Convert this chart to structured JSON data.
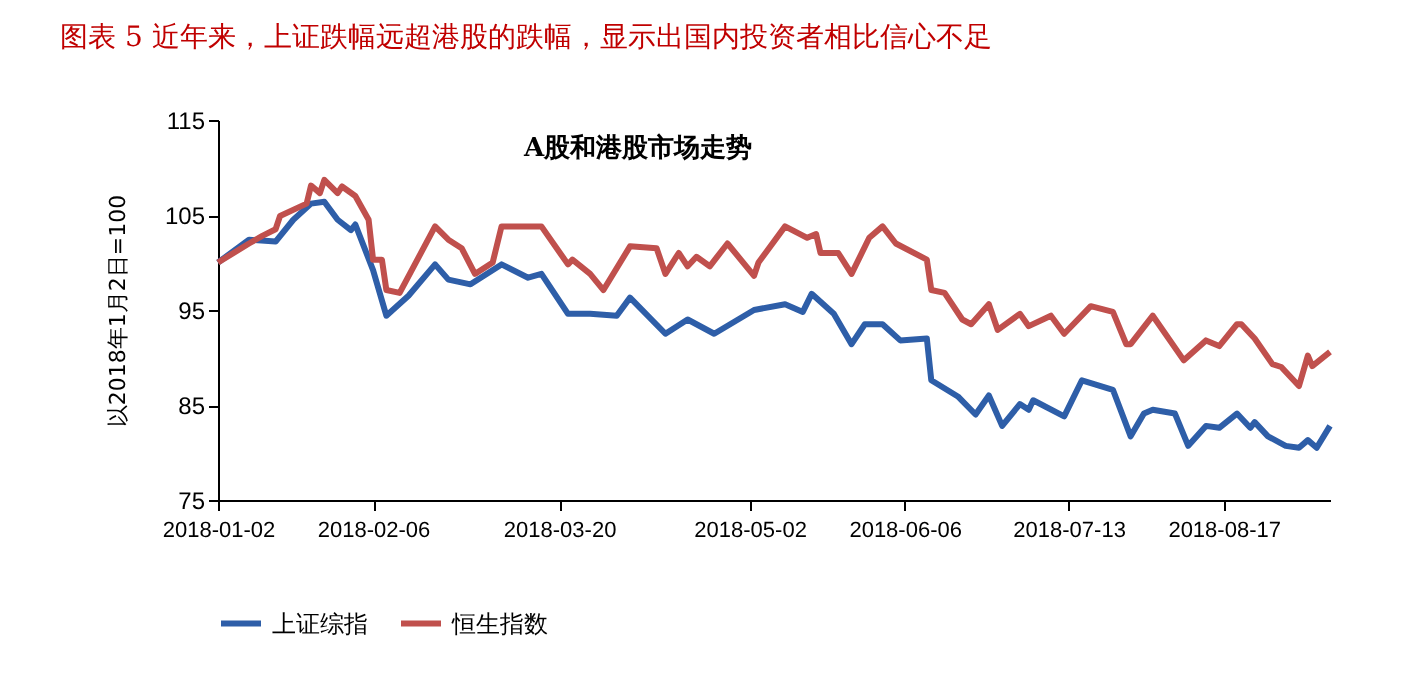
{
  "chart_data": {
    "type": "line",
    "title": "图表 5 近年来，上证跌幅远超港股的跌幅，显示出国内投资者相比信心不足",
    "subtitle": "A股和港股市场走势",
    "ylabel": "以2018年1月2日=100",
    "xlim": [
      "2018-01-02",
      "2018-09-10"
    ],
    "xticks": [
      "2018-01-02",
      "2018-02-06",
      "2018-03-20",
      "2018-05-02",
      "2018-06-06",
      "2018-07-13",
      "2018-08-17"
    ],
    "ylim": [
      75,
      115
    ],
    "yticks": [
      75,
      85,
      95,
      105,
      115
    ],
    "grid": false,
    "legend": "bottom",
    "marker": "none",
    "line_style": "solid",
    "series": [
      {
        "name": "上证综指",
        "color": "#2e5ea8",
        "x": [
          "2018-01-02",
          "2018-01-09",
          "2018-01-15",
          "2018-01-19",
          "2018-01-23",
          "2018-01-26",
          "2018-01-29",
          "2018-02-01",
          "2018-02-02",
          "2018-02-06",
          "2018-02-09",
          "2018-02-14",
          "2018-02-20",
          "2018-02-23",
          "2018-02-28",
          "2018-03-07",
          "2018-03-13",
          "2018-03-16",
          "2018-03-22",
          "2018-03-27",
          "2018-04-02",
          "2018-04-05",
          "2018-04-13",
          "2018-04-18",
          "2018-04-24",
          "2018-05-03",
          "2018-05-10",
          "2018-05-14",
          "2018-05-16",
          "2018-05-21",
          "2018-05-25",
          "2018-05-28",
          "2018-06-01",
          "2018-06-05",
          "2018-06-11",
          "2018-06-12",
          "2018-06-18",
          "2018-06-22",
          "2018-06-25",
          "2018-06-28",
          "2018-07-02",
          "2018-07-04",
          "2018-07-05",
          "2018-07-12",
          "2018-07-16",
          "2018-07-23",
          "2018-07-27",
          "2018-07-30",
          "2018-08-01",
          "2018-08-06",
          "2018-08-09",
          "2018-08-13",
          "2018-08-16",
          "2018-08-20",
          "2018-08-23",
          "2018-08-24",
          "2018-08-27",
          "2018-08-31",
          "2018-09-03",
          "2018-09-05",
          "2018-09-07",
          "2018-09-10"
        ],
        "values": [
          100,
          102.4,
          102.2,
          104.5,
          106.2,
          106.4,
          104.5,
          103.4,
          104,
          99.2,
          94.4,
          96.5,
          99.8,
          98.2,
          97.7,
          99.8,
          98.4,
          98.8,
          94.6,
          94.6,
          94.4,
          96.3,
          92.5,
          94,
          92.5,
          95,
          95.6,
          94.8,
          96.7,
          94.6,
          91.4,
          93.5,
          93.5,
          91.8,
          92,
          87.6,
          85.9,
          84,
          86,
          82.8,
          85.1,
          84.5,
          85.5,
          83.8,
          87.6,
          86.6,
          81.7,
          84.1,
          84.5,
          84.1,
          80.7,
          82.8,
          82.6,
          84.1,
          82.6,
          83.2,
          81.7,
          80.7,
          80.5,
          81.3,
          80.5,
          82.8
        ]
      },
      {
        "name": "恒生指数",
        "color": "#c0504d",
        "x": [
          "2018-01-02",
          "2018-01-09",
          "2018-01-12",
          "2018-01-15",
          "2018-01-16",
          "2018-01-22",
          "2018-01-23",
          "2018-01-25",
          "2018-01-26",
          "2018-01-29",
          "2018-01-30",
          "2018-02-02",
          "2018-02-05",
          "2018-02-06",
          "2018-02-08",
          "2018-02-09",
          "2018-02-12",
          "2018-02-20",
          "2018-02-23",
          "2018-02-26",
          "2018-03-01",
          "2018-03-05",
          "2018-03-07",
          "2018-03-16",
          "2018-03-22",
          "2018-03-23",
          "2018-03-27",
          "2018-03-30",
          "2018-04-05",
          "2018-04-11",
          "2018-04-13",
          "2018-04-16",
          "2018-04-18",
          "2018-04-20",
          "2018-04-23",
          "2018-04-27",
          "2018-05-03",
          "2018-05-04",
          "2018-05-10",
          "2018-05-15",
          "2018-05-17",
          "2018-05-18",
          "2018-05-22",
          "2018-05-25",
          "2018-05-29",
          "2018-06-01",
          "2018-06-04",
          "2018-06-11",
          "2018-06-12",
          "2018-06-15",
          "2018-06-19",
          "2018-06-21",
          "2018-06-25",
          "2018-06-27",
          "2018-07-02",
          "2018-07-04",
          "2018-07-09",
          "2018-07-12",
          "2018-07-18",
          "2018-07-23",
          "2018-07-26",
          "2018-07-27",
          "2018-08-01",
          "2018-08-08",
          "2018-08-13",
          "2018-08-16",
          "2018-08-20",
          "2018-08-21",
          "2018-08-24",
          "2018-08-28",
          "2018-08-30",
          "2018-09-03",
          "2018-09-05",
          "2018-09-06",
          "2018-09-10"
        ],
        "values": [
          100,
          102,
          102.8,
          103.5,
          104.9,
          106.2,
          108.1,
          107.3,
          108.7,
          107.3,
          108,
          107,
          104.5,
          100.3,
          100.3,
          97.1,
          96.8,
          103.8,
          102.4,
          101.5,
          98.8,
          100,
          103.8,
          103.8,
          99.8,
          100.3,
          98.8,
          97.1,
          101.7,
          101.5,
          98.8,
          101,
          99.6,
          100.6,
          99.6,
          102,
          98.6,
          100,
          103.8,
          102.6,
          103,
          101,
          101,
          98.8,
          102.6,
          103.8,
          102,
          100.3,
          97.1,
          96.8,
          94,
          93.5,
          95.6,
          92.9,
          94.6,
          93.3,
          94.4,
          92.5,
          95.4,
          94.8,
          91.4,
          91.4,
          94.4,
          89.7,
          91.8,
          91.2,
          93.5,
          93.5,
          92,
          89.3,
          89,
          87,
          90.2,
          89.1,
          90.6
        ]
      }
    ]
  }
}
